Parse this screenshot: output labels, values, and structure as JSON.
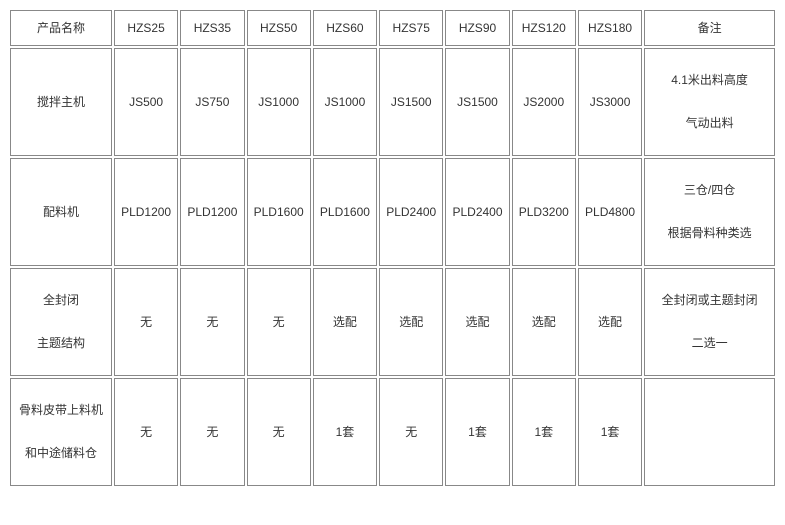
{
  "table": {
    "type": "table",
    "border_color": "#888888",
    "background_color": "#ffffff",
    "text_color": "#333333",
    "font_size": 12,
    "header": {
      "name_label": "产品名称",
      "models": [
        "HZS25",
        "HZS35",
        "HZS50",
        "HZS60",
        "HZS75",
        "HZS90",
        "HZS120",
        "HZS180"
      ],
      "remark_label": "备注"
    },
    "rows": [
      {
        "name_lines": [
          "搅拌主机"
        ],
        "cells": [
          "JS500",
          "JS750",
          "JS1000",
          "JS1000",
          "JS1500",
          "JS1500",
          "JS2000",
          "JS3000"
        ],
        "remark_lines": [
          "4.1米出料高度",
          "气动出料"
        ]
      },
      {
        "name_lines": [
          "配料机"
        ],
        "cells": [
          "PLD1200",
          "PLD1200",
          "PLD1600",
          "PLD1600",
          "PLD2400",
          "PLD2400",
          "PLD3200",
          "PLD4800"
        ],
        "remark_lines": [
          "三仓/四仓",
          "根据骨料种类选"
        ]
      },
      {
        "name_lines": [
          "全封闭",
          "主题结构"
        ],
        "cells": [
          "无",
          "无",
          "无",
          "选配",
          "选配",
          "选配",
          "选配",
          "选配"
        ],
        "remark_lines": [
          "全封闭或主题封闭",
          "二选一"
        ]
      },
      {
        "name_lines": [
          "骨料皮带上料机",
          "和中途储料仓"
        ],
        "cells": [
          "无",
          "无",
          "无",
          "1套",
          "无",
          "1套",
          "1套",
          "1套"
        ],
        "remark_lines": [
          ""
        ]
      }
    ]
  }
}
